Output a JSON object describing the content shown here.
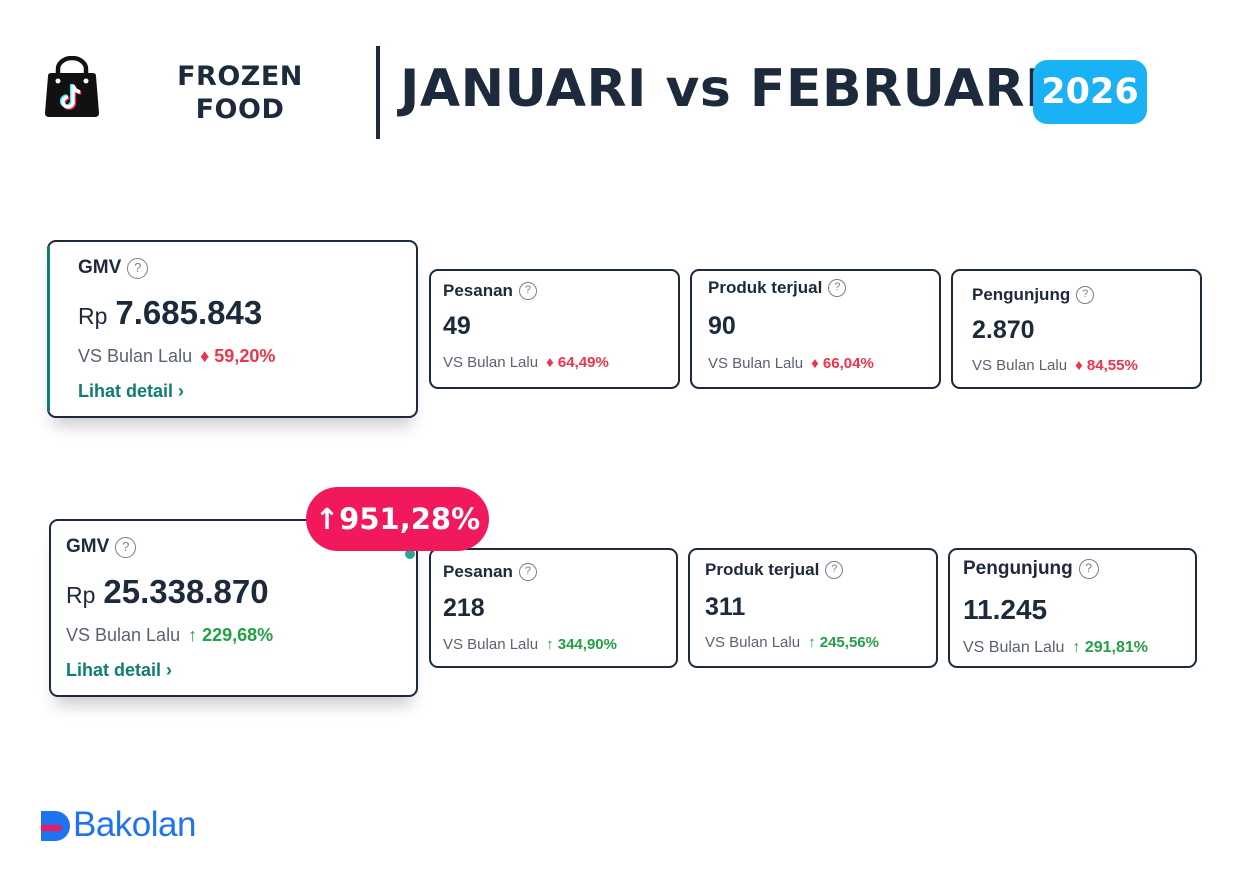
{
  "header": {
    "category_line1": "FROZEN",
    "category_line2": "FOOD",
    "headline": "JANUARI vs FEBRUARI",
    "year": "2026"
  },
  "colors": {
    "dark_navy": "#1c2a3c",
    "accent_blue": "#1ab2f4",
    "negative_red": "#ef3349",
    "positive_green": "#22a045",
    "link_teal": "#0e7d73",
    "growth_pink": "#f2185c",
    "brand_blue": "#1f73f0"
  },
  "compare_label": "VS Bulan Lalu",
  "detail_link": "Lihat detail",
  "currency": "Rp",
  "january": {
    "gmv": {
      "label": "GMV",
      "value": "7.685.843",
      "change": "59,20%",
      "trend": "down"
    },
    "pesanan": {
      "label": "Pesanan",
      "value": "49",
      "change": "64,49%",
      "trend": "down"
    },
    "produk_terjual": {
      "label": "Produk terjual",
      "value": "90",
      "change": "66,04%",
      "trend": "down"
    },
    "pengunjung": {
      "label": "Pengunjung",
      "value": "2.870",
      "change": "84,55%",
      "trend": "down"
    }
  },
  "february": {
    "gmv": {
      "label": "GMV",
      "value": "25.338.870",
      "change": "229,68%",
      "trend": "up"
    },
    "pesanan": {
      "label": "Pesanan",
      "value": "218",
      "change": "344,90%",
      "trend": "up"
    },
    "produk_terjual": {
      "label": "Produk terjual",
      "value": "311",
      "change": "245,56%",
      "trend": "up"
    },
    "pengunjung": {
      "label": "Pengunjung",
      "value": "11.245",
      "change": "291,81%",
      "trend": "up"
    }
  },
  "growth_badge": "951,28%",
  "icons": {
    "shop": "tiktok-shop-bag-icon",
    "help": "question-circle-icon",
    "arrow_up": "arrow-up-icon",
    "arrow_down": "arrow-down-icon",
    "brand": "bakolan-logo-mark"
  },
  "brand": {
    "name": "Bakolan"
  }
}
